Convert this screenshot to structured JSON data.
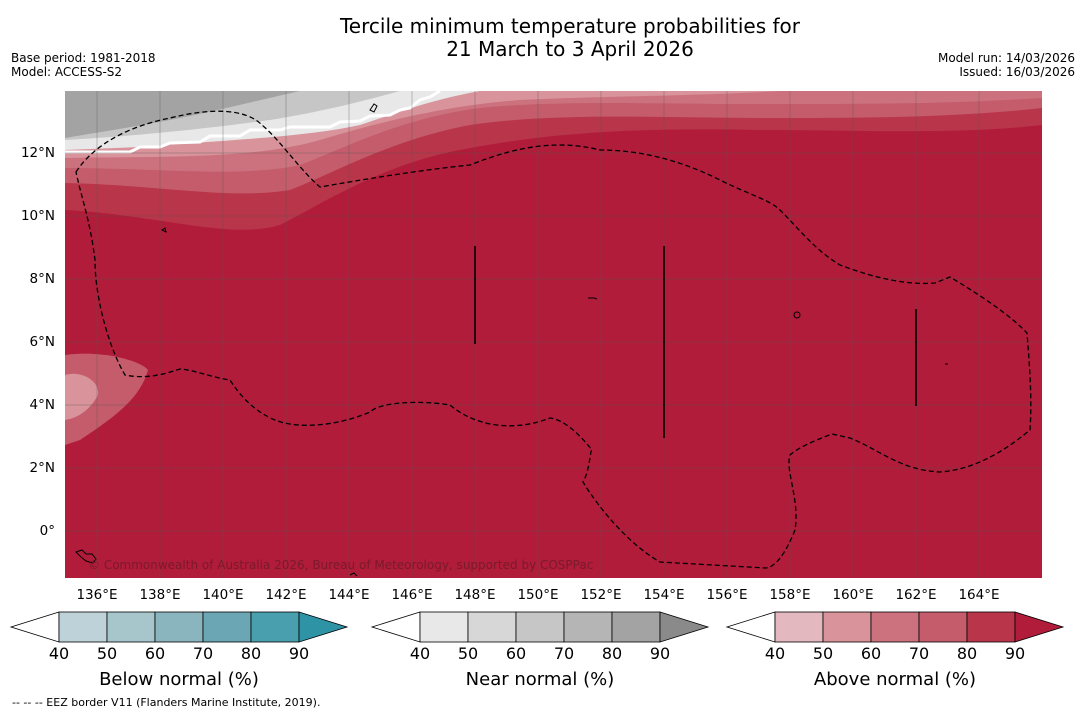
{
  "title_line1": "Tercile minimum temperature probabilities for",
  "title_line2": "21 March to 3 April 2026",
  "left_meta": {
    "base_period": "Base period: 1981-2018",
    "model": "Model: ACCESS-S2"
  },
  "right_meta": {
    "model_run": "Model run: 14/03/2026",
    "issued": "Issued: 16/03/2026"
  },
  "y_ticks": [
    "12°N",
    "10°N",
    "8°N",
    "6°N",
    "4°N",
    "2°N",
    "0°"
  ],
  "x_ticks": [
    "136°E",
    "138°E",
    "140°E",
    "142°E",
    "144°E",
    "146°E",
    "148°E",
    "150°E",
    "152°E",
    "154°E",
    "156°E",
    "158°E",
    "160°E",
    "162°E",
    "164°E"
  ],
  "copyright": "© Commonwealth of Australia 2026, Bureau of Meteorology, supported by COSPPac",
  "colorbars": [
    {
      "label": "Below normal (%)",
      "ticks": [
        "40",
        "50",
        "60",
        "70",
        "80",
        "90"
      ],
      "colors": [
        "#ffffff",
        "#bdd3d9",
        "#a6c6cc",
        "#8bb5be",
        "#6aa6b3",
        "#4a9fae",
        "#2f93a6"
      ]
    },
    {
      "label": "Near normal (%)",
      "ticks": [
        "40",
        "50",
        "60",
        "70",
        "80",
        "90"
      ],
      "colors": [
        "#ffffff",
        "#e8e8e8",
        "#d7d7d7",
        "#c6c6c6",
        "#b5b5b5",
        "#a3a3a3",
        "#8a8a8a"
      ]
    },
    {
      "label": "Above normal (%)",
      "ticks": [
        "40",
        "50",
        "60",
        "70",
        "80",
        "90"
      ],
      "colors": [
        "#ffffff",
        "#e3b8be",
        "#d8939b",
        "#cc727e",
        "#c45c6b",
        "#b93549",
        "#b01c3a"
      ]
    }
  ],
  "footer": "--  --  -- EEZ border V11 (Flanders Marine Institute, 2019)."
}
